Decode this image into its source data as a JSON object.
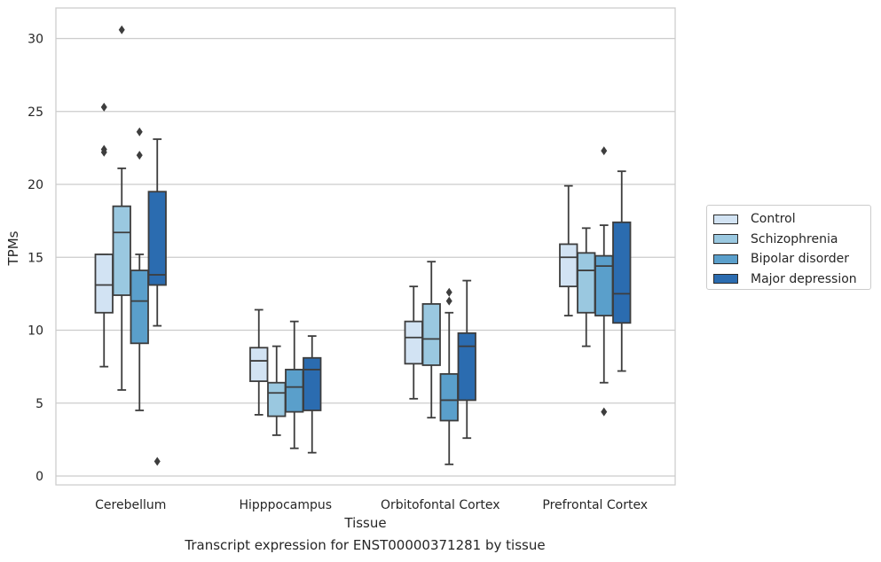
{
  "caption": "Transcript expression for ENST00000371281 by tissue",
  "chart_data": {
    "type": "boxplot",
    "title": "",
    "xlabel": "Tissue",
    "ylabel": "TPMs",
    "ylim": [
      -0.6,
      32
    ],
    "yticks": [
      0,
      5,
      10,
      15,
      20,
      25,
      30
    ],
    "grid": "horizontal",
    "legend_position": "right",
    "categories": [
      "Cerebellum",
      "Hipppocampus",
      "Orbitofontal Cortex",
      "Prefrontal Cortex"
    ],
    "series": [
      {
        "name": "Control",
        "color": "#d2e3f3",
        "boxes": [
          {
            "whislo": 7.5,
            "q1": 11.2,
            "med": 13.1,
            "q3": 15.2,
            "whishi": 15.2,
            "fliers": []
          },
          {
            "whislo": 4.2,
            "q1": 6.5,
            "med": 7.9,
            "q3": 8.8,
            "whishi": 11.4,
            "fliers": []
          },
          {
            "whislo": 5.3,
            "q1": 7.7,
            "med": 9.5,
            "q3": 10.6,
            "whishi": 13.0,
            "fliers": []
          },
          {
            "whislo": 11.0,
            "q1": 13.0,
            "med": 15.0,
            "q3": 15.9,
            "whishi": 19.9,
            "fliers": []
          }
        ]
      },
      {
        "name": "Schizophrenia",
        "color": "#9ac8e0",
        "boxes": [
          {
            "whislo": 5.9,
            "q1": 12.4,
            "med": 16.7,
            "q3": 18.5,
            "whishi": 21.1,
            "fliers": [
              30.6
            ]
          },
          {
            "whislo": 2.8,
            "q1": 4.1,
            "med": 5.7,
            "q3": 6.4,
            "whishi": 8.9,
            "fliers": []
          },
          {
            "whislo": 4.0,
            "q1": 7.6,
            "med": 9.4,
            "q3": 11.8,
            "whishi": 14.7,
            "fliers": []
          },
          {
            "whislo": 8.9,
            "q1": 11.2,
            "med": 14.1,
            "q3": 15.3,
            "whishi": 17.0,
            "fliers": []
          }
        ]
      },
      {
        "name": "Bipolar disorder",
        "color": "#5a9fcb",
        "boxes": [
          {
            "whislo": 4.5,
            "q1": 9.1,
            "med": 12.0,
            "q3": 14.1,
            "whishi": 15.2,
            "fliers": [
              23.6,
              22.0
            ]
          },
          {
            "whislo": 1.9,
            "q1": 4.4,
            "med": 6.1,
            "q3": 7.3,
            "whishi": 10.6,
            "fliers": []
          },
          {
            "whislo": 0.8,
            "q1": 3.8,
            "med": 5.2,
            "q3": 7.0,
            "whishi": 11.2,
            "fliers": [
              12.6,
              12.0
            ]
          },
          {
            "whislo": 6.4,
            "q1": 11.0,
            "med": 14.4,
            "q3": 15.1,
            "whishi": 17.2,
            "fliers": [
              22.3,
              4.4
            ]
          }
        ]
      },
      {
        "name": "Major depression",
        "color": "#2b6cb0",
        "boxes": [
          {
            "whislo": 10.3,
            "q1": 13.1,
            "med": 13.8,
            "q3": 19.5,
            "whishi": 23.1,
            "fliers": [
              1.0
            ]
          },
          {
            "whislo": 1.6,
            "q1": 4.5,
            "med": 7.3,
            "q3": 8.1,
            "whishi": 9.6,
            "fliers": []
          },
          {
            "whislo": 2.6,
            "q1": 5.2,
            "med": 8.9,
            "q3": 9.8,
            "whishi": 13.4,
            "fliers": []
          },
          {
            "whislo": 7.2,
            "q1": 10.5,
            "med": 12.5,
            "q3": 17.4,
            "whishi": 20.9,
            "fliers": []
          }
        ]
      }
    ],
    "extra_fliers": [
      {
        "category": "Cerebellum",
        "series": "Control",
        "values": [
          25.3,
          22.4,
          22.2
        ]
      }
    ]
  }
}
